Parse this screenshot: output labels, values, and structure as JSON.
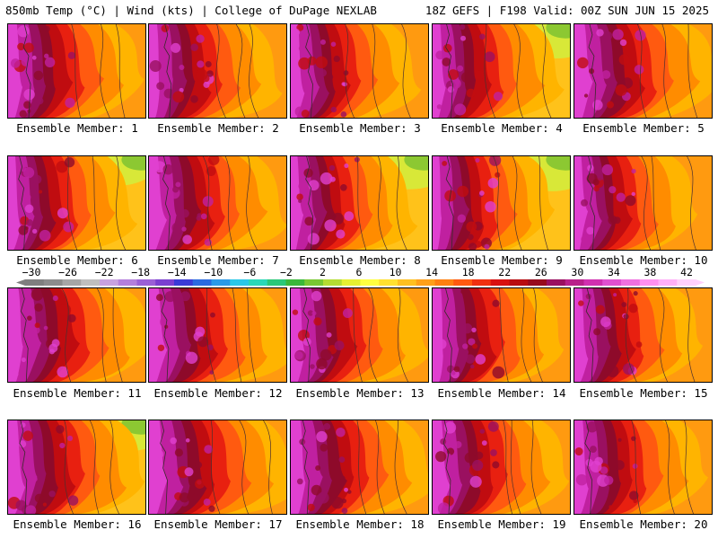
{
  "header": {
    "left": "850mb Temp (°C) | Wind (kts) | College of DuPage NEXLAB",
    "right": "18Z GEFS | F198 Valid: 00Z SUN JUN 15 2025"
  },
  "members": [
    "Ensemble Member: 1",
    "Ensemble Member: 2",
    "Ensemble Member: 3",
    "Ensemble Member: 4",
    "Ensemble Member: 5",
    "Ensemble Member: 6",
    "Ensemble Member: 7",
    "Ensemble Member: 8",
    "Ensemble Member: 9",
    "Ensemble Member: 10",
    "Ensemble Member: 11",
    "Ensemble Member: 12",
    "Ensemble Member: 13",
    "Ensemble Member: 14",
    "Ensemble Member: 15",
    "Ensemble Member: 16",
    "Ensemble Member: 17",
    "Ensemble Member: 18",
    "Ensemble Member: 19",
    "Ensemble Member: 20"
  ],
  "colorbar": {
    "labels": [
      "−30",
      "−26",
      "−22",
      "−18",
      "−14",
      "−10",
      "−6",
      "−2",
      "2",
      "6",
      "10",
      "14",
      "18",
      "22",
      "26",
      "30",
      "34",
      "38",
      "42"
    ],
    "colors": [
      "#7f7f7f",
      "#8c8c8c",
      "#a6a6a6",
      "#bfbfbf",
      "#c8a2e0",
      "#b47fdc",
      "#9b5fd6",
      "#7a3fd0",
      "#3a3ad6",
      "#2a6ae0",
      "#2a9ae8",
      "#2ac8e8",
      "#2ad8b8",
      "#2ac878",
      "#3ab83a",
      "#78c832",
      "#b4dc32",
      "#e6f032",
      "#ffff40",
      "#ffe030",
      "#ffc020",
      "#ffa018",
      "#ff8010",
      "#ff5a10",
      "#f03010",
      "#d81010",
      "#b80c10",
      "#980a1e",
      "#9a1060",
      "#b8208a",
      "#d030b0",
      "#e050d0",
      "#f070e0",
      "#ff90f0",
      "#ffb0f8",
      "#ffd0fc"
    ]
  }
}
